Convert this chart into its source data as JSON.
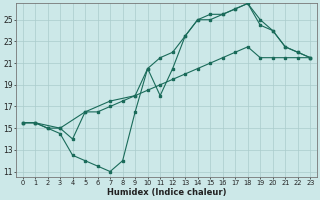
{
  "xlabel": "Humidex (Indice chaleur)",
  "background_color": "#cce8e8",
  "grid_color": "#aacccc",
  "line_color": "#1a6b5a",
  "xlim": [
    -0.5,
    23.5
  ],
  "ylim": [
    10.5,
    26.5
  ],
  "xticks": [
    0,
    1,
    2,
    3,
    4,
    5,
    6,
    7,
    8,
    9,
    10,
    11,
    12,
    13,
    14,
    15,
    16,
    17,
    18,
    19,
    20,
    21,
    22,
    23
  ],
  "yticks": [
    11,
    13,
    15,
    17,
    19,
    21,
    23,
    25
  ],
  "line1_x": [
    0,
    1,
    3,
    4,
    5,
    6,
    7,
    8,
    9,
    10,
    11,
    12,
    13,
    14,
    15,
    16,
    17,
    18,
    19,
    20,
    21,
    22,
    23
  ],
  "line1_y": [
    15.5,
    15.5,
    15.0,
    14.0,
    16.5,
    16.5,
    17.0,
    17.5,
    18.0,
    18.5,
    19.0,
    19.5,
    20.0,
    20.5,
    21.0,
    21.5,
    22.0,
    22.5,
    21.5,
    21.5,
    21.5,
    21.5,
    21.5
  ],
  "line2_x": [
    0,
    1,
    2,
    3,
    4,
    5,
    6,
    7,
    8,
    9,
    10,
    11,
    12,
    13,
    14,
    15,
    16,
    17,
    18,
    19,
    20,
    21,
    22,
    23
  ],
  "line2_y": [
    15.5,
    15.5,
    15.0,
    14.5,
    12.5,
    12.0,
    11.5,
    11.0,
    12.0,
    16.5,
    20.5,
    18.0,
    20.5,
    23.5,
    25.0,
    25.0,
    25.5,
    26.0,
    26.5,
    25.0,
    24.0,
    22.5,
    22.0,
    21.5
  ],
  "line3_x": [
    0,
    1,
    2,
    3,
    5,
    7,
    9,
    10,
    11,
    12,
    13,
    14,
    15,
    16,
    17,
    18,
    19,
    20,
    21,
    22,
    23
  ],
  "line3_y": [
    15.5,
    15.5,
    15.0,
    15.0,
    16.5,
    17.5,
    18.0,
    20.5,
    21.5,
    22.0,
    23.5,
    25.0,
    25.5,
    25.5,
    26.0,
    26.5,
    24.5,
    24.0,
    22.5,
    22.0,
    21.5
  ]
}
